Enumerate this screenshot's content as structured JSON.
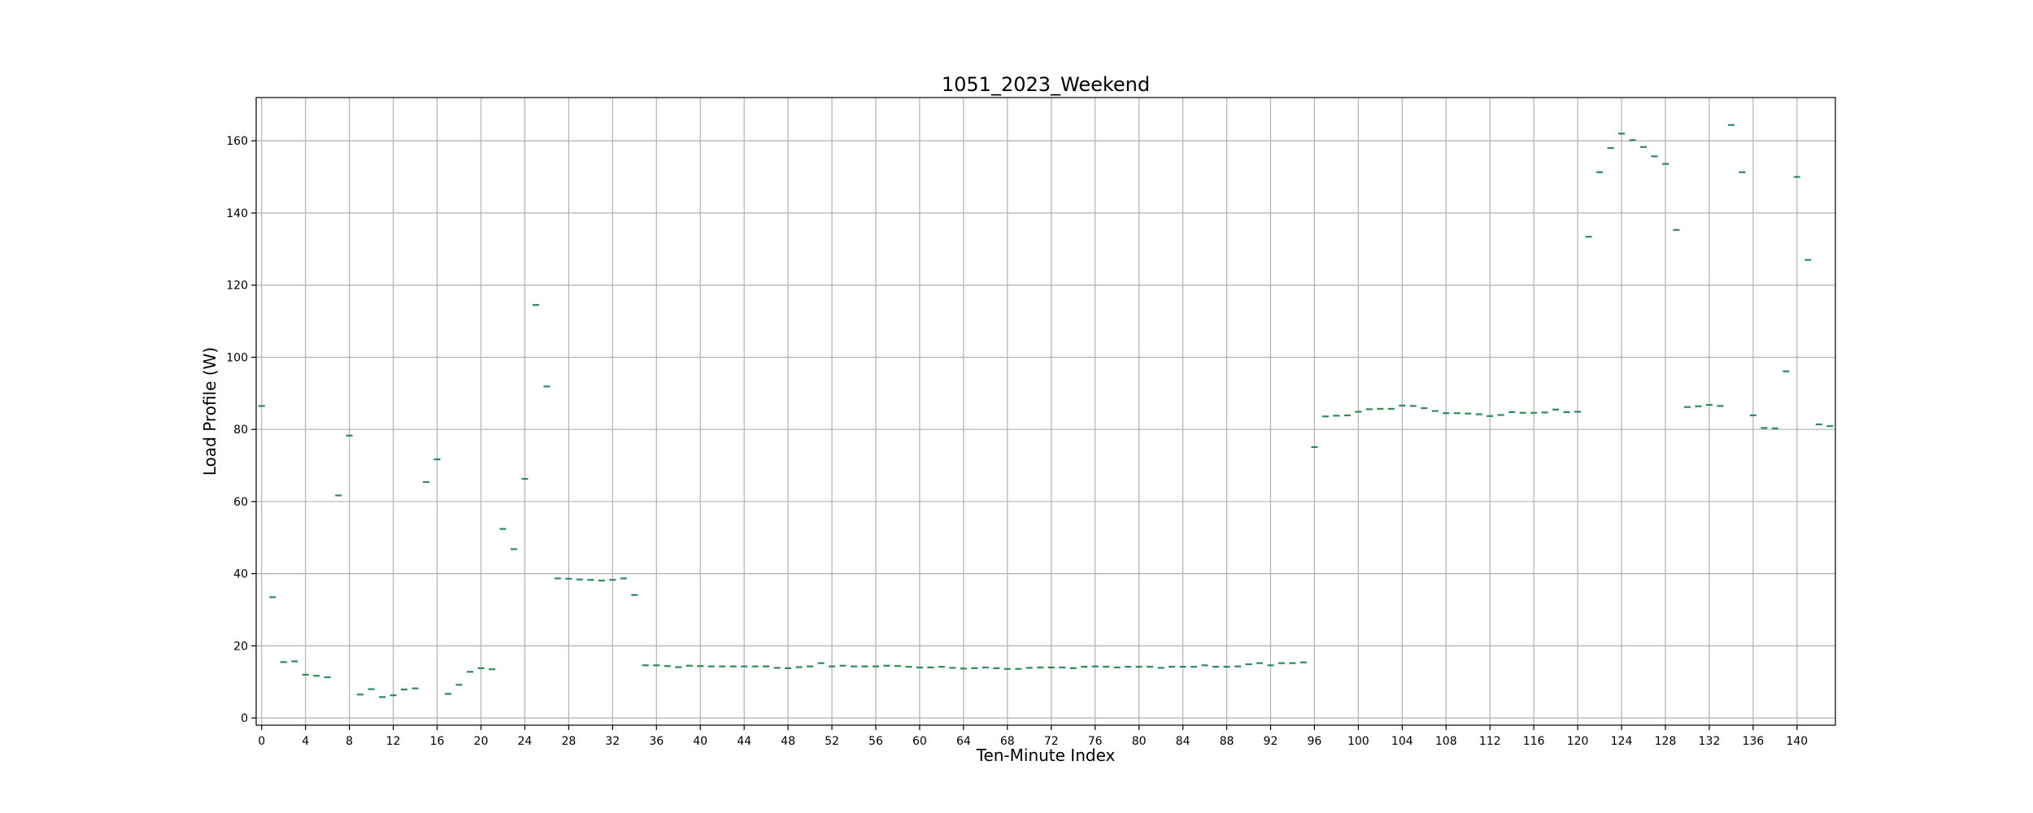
{
  "chart_data": {
    "type": "scatter",
    "title": "1051_2023_Weekend",
    "xlabel": "Ten-Minute Index",
    "ylabel": "Load Profile (W)",
    "xlim": [
      -0.5,
      143.5
    ],
    "ylim": [
      -2,
      172
    ],
    "grid": true,
    "marker_color": "#2e8b57",
    "x_ticks": [
      0,
      4,
      8,
      12,
      16,
      20,
      24,
      28,
      32,
      36,
      40,
      44,
      48,
      52,
      56,
      60,
      64,
      68,
      72,
      76,
      80,
      84,
      88,
      92,
      96,
      100,
      104,
      108,
      112,
      116,
      120,
      124,
      128,
      132,
      136,
      140
    ],
    "y_ticks": [
      0,
      20,
      40,
      60,
      80,
      100,
      120,
      140,
      160
    ],
    "x": [
      0,
      1,
      2,
      3,
      4,
      5,
      6,
      7,
      8,
      9,
      10,
      11,
      12,
      13,
      14,
      15,
      16,
      17,
      18,
      19,
      20,
      21,
      22,
      23,
      24,
      25,
      26,
      27,
      28,
      29,
      30,
      31,
      32,
      33,
      34,
      35,
      36,
      37,
      38,
      39,
      40,
      41,
      42,
      43,
      44,
      45,
      46,
      47,
      48,
      49,
      50,
      51,
      52,
      53,
      54,
      55,
      56,
      57,
      58,
      59,
      60,
      61,
      62,
      63,
      64,
      65,
      66,
      67,
      68,
      69,
      70,
      71,
      72,
      73,
      74,
      75,
      76,
      77,
      78,
      79,
      80,
      81,
      82,
      83,
      84,
      85,
      86,
      87,
      88,
      89,
      90,
      91,
      92,
      93,
      94,
      95,
      96,
      97,
      98,
      99,
      100,
      101,
      102,
      103,
      104,
      105,
      106,
      107,
      108,
      109,
      110,
      111,
      112,
      113,
      114,
      115,
      116,
      117,
      118,
      119,
      120,
      121,
      122,
      123,
      124,
      125,
      126,
      127,
      128,
      129,
      130,
      131,
      132,
      133,
      134,
      135,
      136,
      137,
      138,
      139,
      140,
      141,
      142,
      143
    ],
    "values": [
      86.5,
      33.5,
      15.5,
      15.7,
      12,
      11.7,
      11.3,
      61.7,
      78.3,
      6.5,
      8,
      5.8,
      6.3,
      7.9,
      8.2,
      65.4,
      71.7,
      6.7,
      9.2,
      12.8,
      13.8,
      13.5,
      52.4,
      46.8,
      66.3,
      114.5,
      91.9,
      38.7,
      38.6,
      38.4,
      38.3,
      38.1,
      38.3,
      38.7,
      34.1,
      14.6,
      14.6,
      14.4,
      14.1,
      14.5,
      14.4,
      14.3,
      14.3,
      14.3,
      14.3,
      14.3,
      14.3,
      13.9,
      13.8,
      14.1,
      14.3,
      15.2,
      14.3,
      14.5,
      14.3,
      14.3,
      14.3,
      14.5,
      14.4,
      14.2,
      14,
      14,
      14.2,
      13.9,
      13.7,
      13.8,
      14,
      13.8,
      13.6,
      13.6,
      13.9,
      14,
      14,
      14,
      13.8,
      14.2,
      14.3,
      14.2,
      14,
      14.2,
      14.2,
      14.2,
      13.9,
      14.2,
      14.2,
      14.2,
      14.6,
      14.2,
      14.2,
      14.3,
      14.9,
      15.2,
      14.6,
      15.2,
      15.2,
      15.4,
      75.1,
      83.6,
      83.8,
      83.9,
      84.9,
      85.6,
      85.7,
      85.7,
      86.6,
      86.5,
      85.9,
      85.1,
      84.5,
      84.5,
      84.4,
      84.2,
      83.7,
      84,
      84.8,
      84.6,
      84.6,
      84.7,
      85.5,
      84.8,
      84.9,
      133.4,
      151.3,
      158,
      162,
      160.2,
      158.3,
      155.7,
      153.6,
      135.3,
      86.2,
      86.4,
      86.8,
      86.5,
      164.4,
      151.3,
      83.9,
      80.4,
      80.3,
      96.1,
      150,
      127,
      81.4,
      80.9
    ]
  }
}
